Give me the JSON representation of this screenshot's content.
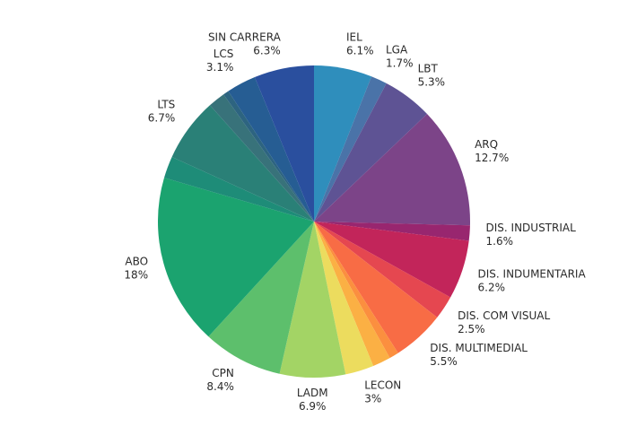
{
  "chart_data": {
    "type": "pie",
    "title": "",
    "legend": "none",
    "slices": [
      {
        "label": "IEL",
        "value": 6.1,
        "value_text": "6.1%",
        "color": "#2f8ebc"
      },
      {
        "label": "LGA",
        "value": 1.7,
        "value_text": "1.7%",
        "color": "#4a73a8"
      },
      {
        "label": "LBT",
        "value": 5.3,
        "value_text": "5.3%",
        "color": "#5e5394"
      },
      {
        "label": "ARQ",
        "value": 12.7,
        "value_text": "12.7%",
        "color": "#7c4488"
      },
      {
        "label": "DIS. INDUSTRIAL",
        "value": 1.6,
        "value_text": "1.6%",
        "color": "#98266f"
      },
      {
        "label": "DIS. INDUMENTARIA",
        "value": 6.2,
        "value_text": "6.2%",
        "color": "#c2255a"
      },
      {
        "label": "DIS. COM VISUAL",
        "value": 2.5,
        "value_text": "2.5%",
        "color": "#e54750"
      },
      {
        "label": "DIS. MULTIMEDIAL",
        "value": 5.5,
        "value_text": "5.5%",
        "color": "#f86c45"
      },
      {
        "label": "",
        "value": 1.0,
        "value_text": "",
        "color": "#fb8f3f"
      },
      {
        "label": "",
        "value": 1.9,
        "value_text": "",
        "color": "#fbb044"
      },
      {
        "label": "LECON",
        "value": 3.0,
        "value_text": "3%",
        "color": "#ecdc5e"
      },
      {
        "label": "LADM",
        "value": 6.9,
        "value_text": "6.9%",
        "color": "#a3d465"
      },
      {
        "label": "CPN",
        "value": 8.4,
        "value_text": "8.4%",
        "color": "#5dbf6c"
      },
      {
        "label": "ABO",
        "value": 18.0,
        "value_text": "18%",
        "color": "#1ba36f"
      },
      {
        "label": "",
        "value": 2.3,
        "value_text": "",
        "color": "#1e8c78"
      },
      {
        "label": "LTS",
        "value": 6.7,
        "value_text": "6.7%",
        "color": "#2a8077"
      },
      {
        "label": "",
        "value": 1.8,
        "value_text": "",
        "color": "#38727a"
      },
      {
        "label": "",
        "value": 0.6,
        "value_text": "",
        "color": "#2d6480"
      },
      {
        "label": "LCS",
        "value": 3.1,
        "value_text": "3.1%",
        "color": "#265d93"
      },
      {
        "label": "SIN CARRERA",
        "value": 6.3,
        "value_text": "6.3%",
        "color": "#2a4f9e"
      }
    ]
  }
}
